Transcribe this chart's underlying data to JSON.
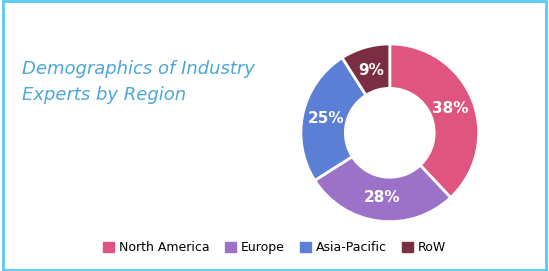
{
  "title": "Demographics of Industry\nExperts by Region",
  "title_color": "#4da6d9",
  "background_color": "#ffffff",
  "border_color": "#5bc8f5",
  "slices": [
    38,
    28,
    25,
    9
  ],
  "labels": [
    "38%",
    "28%",
    "25%",
    "9%"
  ],
  "legend_labels": [
    "North America",
    "Europe",
    "Asia-Pacific",
    "RoW"
  ],
  "colors": [
    "#e05480",
    "#9b72c8",
    "#5b7fd4",
    "#7b2d42"
  ],
  "startangle": 90,
  "label_fontsize": 11,
  "title_fontsize": 13,
  "legend_fontsize": 9
}
